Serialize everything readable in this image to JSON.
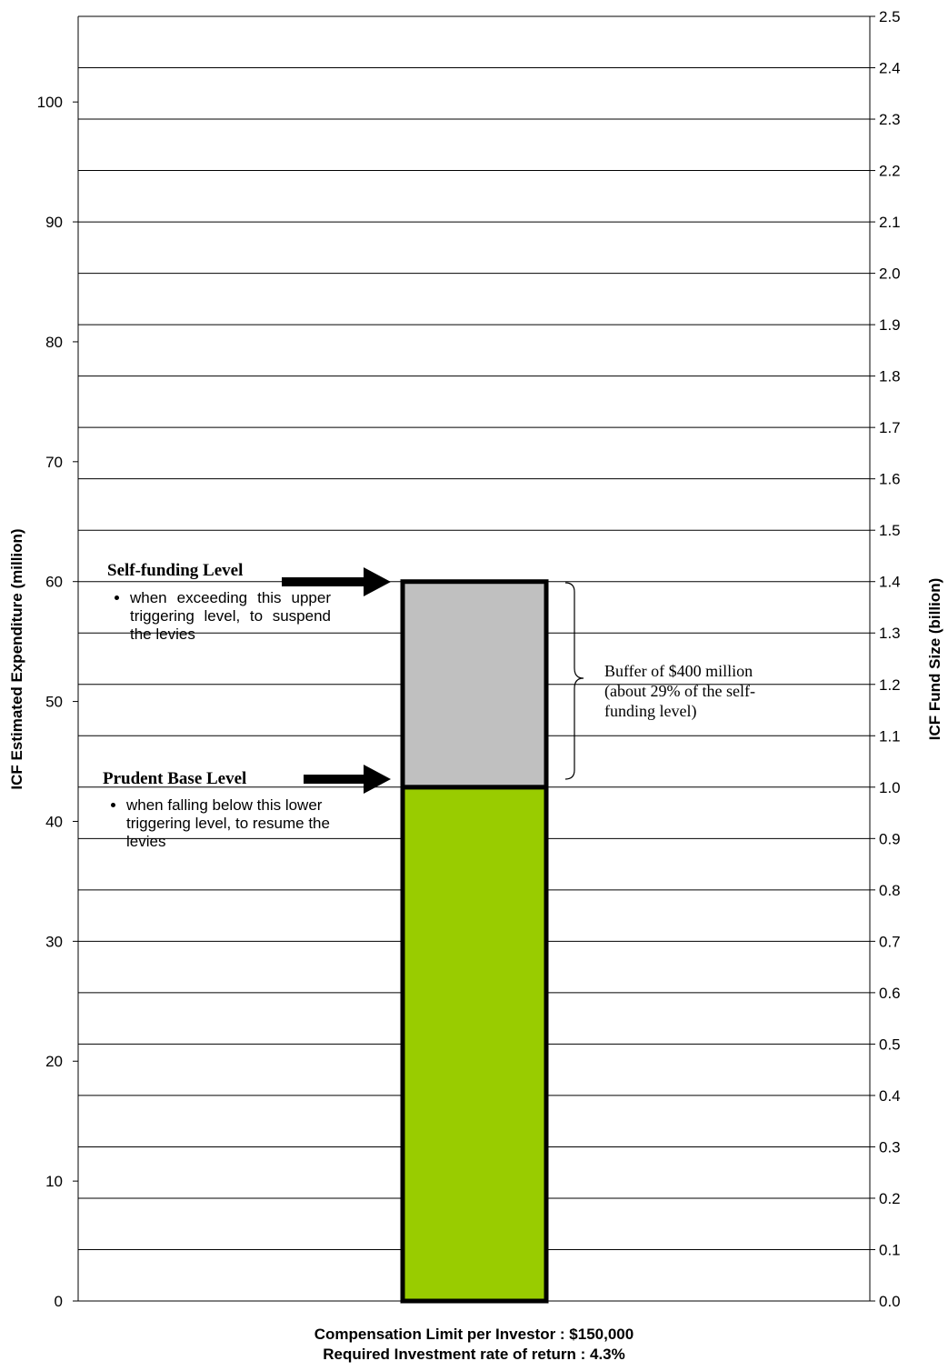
{
  "chart_data": {
    "type": "bar",
    "stacked": true,
    "categories": [
      ""
    ],
    "series": [
      {
        "values": [
          1.0
        ],
        "color": "#99cc00"
      },
      {
        "values": [
          0.4
        ],
        "color": "#c0c0c0"
      }
    ],
    "y_left": {
      "label": "ICF Estimated Expenditure (million)",
      "lim": [
        0,
        107.14
      ],
      "ticks": [
        0,
        10,
        20,
        30,
        40,
        50,
        60,
        70,
        80,
        90,
        100
      ]
    },
    "y_right": {
      "label": "ICF Fund Size (billion)",
      "lim": [
        0,
        2.5
      ],
      "ticks": [
        "0.0",
        "0.1",
        "0.2",
        "0.3",
        "0.4",
        "0.5",
        "0.6",
        "0.7",
        "0.8",
        "0.9",
        "1.0",
        "1.1",
        "1.2",
        "1.3",
        "1.4",
        "1.5",
        "1.6",
        "1.7",
        "1.8",
        "1.9",
        "2.0",
        "2.1",
        "2.2",
        "2.3",
        "2.4",
        "2.5"
      ]
    },
    "grid": true,
    "annotations": {
      "self_funding": {
        "value": 1.4,
        "title": "Self-funding Level",
        "bullet": "when exceeding this upper triggering level, to suspend the levies"
      },
      "prudent_base": {
        "value": 1.0,
        "title": "Prudent Base Level",
        "bullet": "when falling below this lower triggering level, to resume the levies"
      },
      "buffer": {
        "text": "Buffer of $400 million\n(about 29% of the self-\nfunding level)"
      }
    }
  },
  "footer": {
    "line1": "Compensation Limit per Investor : $150,000",
    "line2": "Required Investment rate of return : 4.3%"
  }
}
